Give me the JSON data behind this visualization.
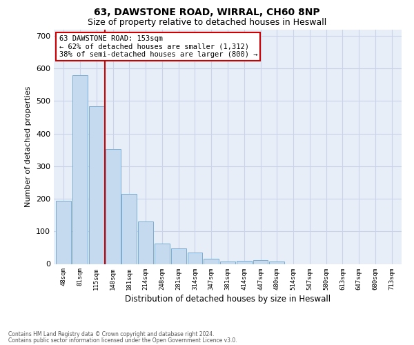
{
  "title1": "63, DAWSTONE ROAD, WIRRAL, CH60 8NP",
  "title2": "Size of property relative to detached houses in Heswall",
  "xlabel": "Distribution of detached houses by size in Heswall",
  "ylabel": "Number of detached properties",
  "bar_labels": [
    "48sqm",
    "81sqm",
    "115sqm",
    "148sqm",
    "181sqm",
    "214sqm",
    "248sqm",
    "281sqm",
    "314sqm",
    "347sqm",
    "381sqm",
    "414sqm",
    "447sqm",
    "480sqm",
    "514sqm",
    "547sqm",
    "580sqm",
    "613sqm",
    "647sqm",
    "680sqm",
    "713sqm"
  ],
  "bar_values": [
    193,
    580,
    483,
    353,
    215,
    130,
    63,
    48,
    35,
    15,
    8,
    10,
    11,
    7,
    0,
    0,
    0,
    0,
    0,
    0,
    0
  ],
  "bar_color": "#c5d9ef",
  "bar_edgecolor": "#7aadd4",
  "vline_color": "#cc0000",
  "annotation_text": "63 DAWSTONE ROAD: 153sqm\n← 62% of detached houses are smaller (1,312)\n38% of semi-detached houses are larger (800) →",
  "annotation_box_edgecolor": "#cc0000",
  "ylim": [
    0,
    720
  ],
  "yticks": [
    0,
    100,
    200,
    300,
    400,
    500,
    600,
    700
  ],
  "grid_color": "#c8d4e8",
  "bg_color": "#e8eef8",
  "title1_fontsize": 10,
  "title2_fontsize": 9,
  "footer1": "Contains HM Land Registry data © Crown copyright and database right 2024.",
  "footer2": "Contains public sector information licensed under the Open Government Licence v3.0."
}
